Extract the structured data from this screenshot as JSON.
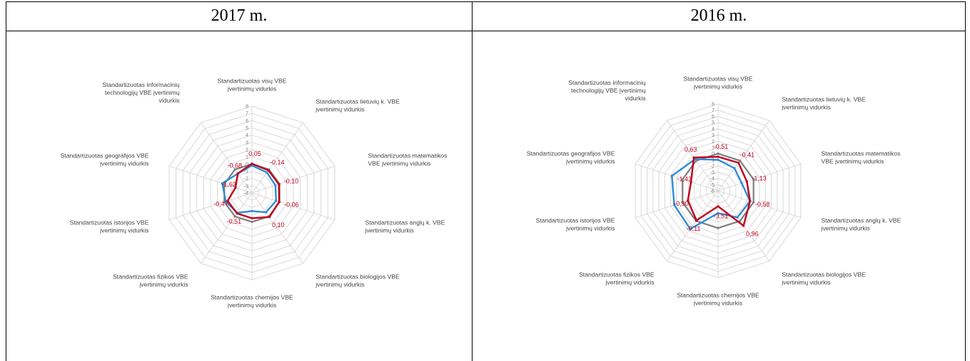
{
  "table": {
    "left_header": "2017 m.",
    "right_header": "2016 m."
  },
  "colors": {
    "grid": "#d9d9d9",
    "series_grey": "#7f7f7f",
    "series_blue": "#2e8bd4",
    "series_red": "#c0001d",
    "label_red": "#c0001d"
  },
  "chart_data": [
    {
      "type": "radar",
      "title": "",
      "axes": [
        "Standartizuotas visų VBE įvertinimų vidurkis",
        "Standartizuotas lietuvių k. VBE įvertinimų vidurkis",
        "Standartizuotas matematikos VBE įvertinimų vidurkis",
        "Standartizuotas anglų k. VBE įvertinimų vidurkis",
        "Standartizuotas biologijos VBE įvertinimų vidurkis",
        "Standartizuotas chemijos VBE įvertinimų vidurkis",
        "Standartizuotas fizikos VBE įvertinimų vidurkis",
        "Standartizuotas istorijos VBE įvertinimų vidurkis",
        "Standartizuotas geografijos VBE įvertinimų vidurkis",
        "Standartizuotas informacinių technologijų VBE įvertinimų vidurkis"
      ],
      "axis_label_lines": [
        [
          "Standartizuotas visų VBE",
          "įvertinimų vidurkis"
        ],
        [
          "Standartizuotas lietuvių k. VBE",
          "įvertinimų vidurkis"
        ],
        [
          "Standartizuotas matematikos",
          "VBE įvertinimų vidurkis"
        ],
        [
          "Standartizuotas anglų k. VBE",
          "įvertinimų vidurkis"
        ],
        [
          "Standartizuotas biologijos VBE",
          "įvertinimų vidurkis"
        ],
        [
          "Standartizuotas chemijos VBE",
          "įvertinimų vidurkis"
        ],
        [
          "Standartizuotas fizikos VBE",
          "įvertinimų vidurkis"
        ],
        [
          "Standartizuotas istorijos VBE",
          "įvertinimų vidurkis"
        ],
        [
          "Standartizuotas geografijos VBE",
          "įvertinimų vidurkis"
        ],
        [
          "Standartizuotas informacinių",
          "technologijų VBE įvertinimų",
          "vidurkis"
        ]
      ],
      "rlim": [
        -4,
        8
      ],
      "ticks": [
        -4,
        -3,
        -2,
        -1,
        0,
        1,
        2,
        3,
        4,
        5,
        6,
        7,
        8
      ],
      "tick_labels": [
        "-4",
        "-3",
        "-2",
        "-1",
        "0",
        "1",
        "2",
        "3",
        "4",
        "5",
        "6",
        "7",
        "8"
      ],
      "grid": true,
      "legend": "none",
      "series": [
        {
          "color": "#7f7f7f",
          "values": [
            0,
            0,
            0,
            0,
            0,
            0,
            0,
            0,
            0,
            0
          ]
        },
        {
          "color": "#2e8bd4",
          "values": [
            -0.2,
            -0.5,
            -0.6,
            -0.5,
            -0.7,
            -1.5,
            -0.6,
            -0.2,
            0.3,
            -0.7
          ]
        },
        {
          "color": "#c0001d",
          "values": [
            0.05,
            -0.14,
            -0.1,
            -0.06,
            0.1,
            -0.51,
            -0.51,
            -0.47,
            -1.62,
            -0.68
          ]
        }
      ],
      "data_labels": [
        "0,05",
        "-0,14",
        "-0,10",
        "-0,06",
        "0,10",
        "",
        "-0,51",
        "-0,47",
        "-1,62",
        "-0,68"
      ]
    },
    {
      "type": "radar",
      "title": "",
      "axes": [
        "Standartizuotas visų VBE įvertinimų vidurkis",
        "Standartizuotas lietuvių k. VBE įvertinimų vidurkis",
        "Standartizuotas matematikos VBE įvertinimų vidurkis",
        "Standartizuotas anglų k. VBE įvertinimų vidurkis",
        "Standartizuotas biologijos VBE įvertinimų vidurkis",
        "Standartizuotas chemijos VBE įvertinimų vidurkis",
        "Standartizuotas fizikos VBE įvertinimų vidurkis",
        "Standartizuotas istorijos VBE įvertinimų vidurkis",
        "Standartizuotas geografijos VBE įvertinimų vidurkis",
        "Standartizuotas informacinių technologijų VBE įvertinimų vidurkis"
      ],
      "axis_label_lines": [
        [
          "Standartizuotas visų VBE",
          "įvertinimų vidurkis"
        ],
        [
          "Standartizuotas lietuvių k. VBE",
          "įvertinimų vidurkis"
        ],
        [
          "Standartizuotas matematikos",
          "VBE įvertinimų vidurkis"
        ],
        [
          "Standartizuotas anglų k. VBE",
          "įvertinimų vidurkis"
        ],
        [
          "Standartizuotas biologijos VBE",
          "įvertinimų vidurkis"
        ],
        [
          "Standartizuotas chemijos VBE",
          "įvertinimų vidurkis"
        ],
        [
          "Standartizuotas fizikos VBE",
          "įvertinimų vidurkis"
        ],
        [
          "Standartizuotas istorijos VBE",
          "įvertinimų vidurkis"
        ],
        [
          "Standartizuotas geografijos VBE",
          "įvertinimų vidurkis"
        ],
        [
          "Standartizuotas informacinių",
          "technologijų VBE įvertinimų",
          "vidurkis"
        ]
      ],
      "rlim": [
        -6,
        8
      ],
      "ticks": [
        -6,
        -5,
        -4,
        -3,
        -2,
        -1,
        0,
        1,
        2,
        3,
        4,
        5,
        6,
        7,
        8
      ],
      "tick_labels": [
        "-6",
        "-5",
        "-4",
        "-3",
        "-2",
        "-1",
        "0",
        "1",
        "2",
        "3",
        "4",
        "5",
        "6",
        "7",
        "8"
      ],
      "grid": true,
      "legend": "none",
      "series": [
        {
          "color": "#7f7f7f",
          "values": [
            0,
            0,
            0,
            0,
            0,
            0,
            0,
            0,
            0,
            0
          ]
        },
        {
          "color": "#2e8bd4",
          "values": [
            -1.0,
            -1.5,
            -2.0,
            -0.6,
            -0.7,
            -2.4,
            1.6,
            1.4,
            1.8,
            0.3
          ]
        },
        {
          "color": "#c0001d",
          "values": [
            -0.51,
            -0.41,
            -1.13,
            -0.58,
            0.96,
            -3.51,
            -0.11,
            -0.9,
            -1.43,
            0.63
          ]
        }
      ],
      "data_labels": [
        "-0,51",
        "-0,41",
        "-1,13",
        "-0,58",
        "0,96",
        "-3,51",
        "-0,11",
        "-0,90",
        "-1,43",
        "0,63"
      ]
    }
  ]
}
